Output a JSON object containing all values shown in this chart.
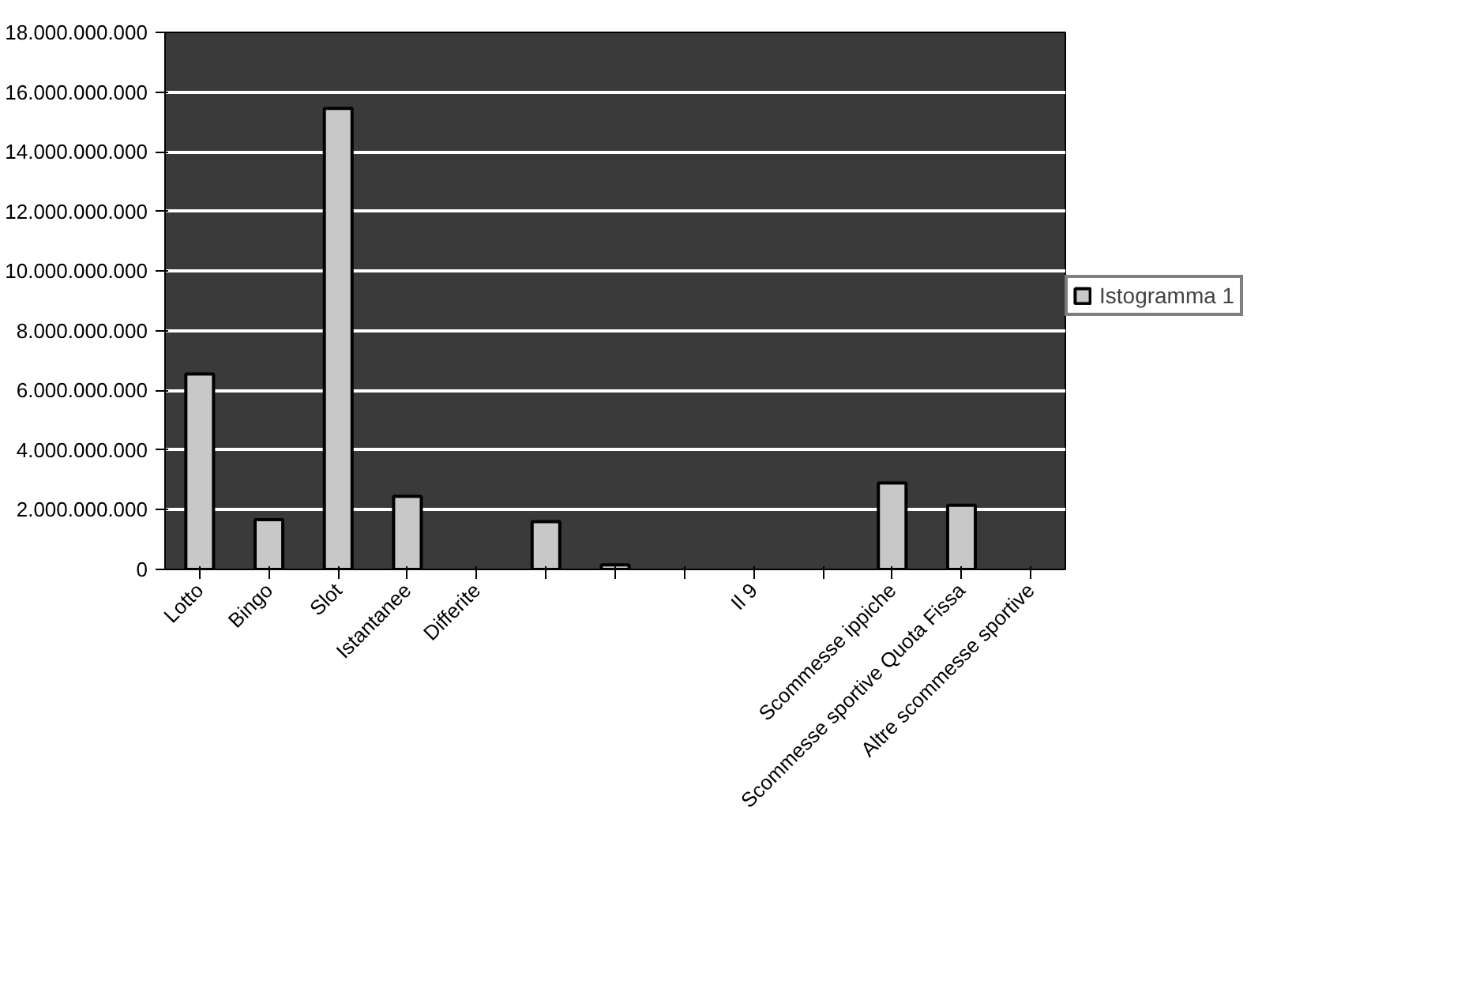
{
  "chart_data": {
    "type": "bar",
    "categories": [
      "Lotto",
      "Bingo",
      "Slot",
      "Istantanee",
      "Differite",
      null,
      null,
      null,
      "Il 9",
      null,
      "Scommesse ippiche",
      "Scommesse sportive Quota Fissa",
      "Altre scommesse sportive"
    ],
    "series": [
      {
        "name": "Istogramma 1",
        "color": "#c8c8c8",
        "values": [
          6550000000,
          1670000000,
          15450000000,
          2450000000,
          null,
          1600000000,
          150000000,
          null,
          null,
          null,
          2900000000,
          2150000000,
          null
        ]
      }
    ],
    "ylim": [
      0,
      18000000000
    ],
    "yticks": [
      {
        "value": 0,
        "label": "0"
      },
      {
        "value": 2000000000,
        "label": "2.000.000.000"
      },
      {
        "value": 4000000000,
        "label": "4.000.000.000"
      },
      {
        "value": 6000000000,
        "label": "6.000.000.000"
      },
      {
        "value": 8000000000,
        "label": "8.000.000.000"
      },
      {
        "value": 10000000000,
        "label": "10.000.000.000"
      },
      {
        "value": 12000000000,
        "label": "12.000.000.000"
      },
      {
        "value": 14000000000,
        "label": "14.000.000.000"
      },
      {
        "value": 16000000000,
        "label": "16.000.000.000"
      },
      {
        "value": 18000000000,
        "label": "18.000.000.000"
      }
    ],
    "grid": "y",
    "legend": "right"
  }
}
